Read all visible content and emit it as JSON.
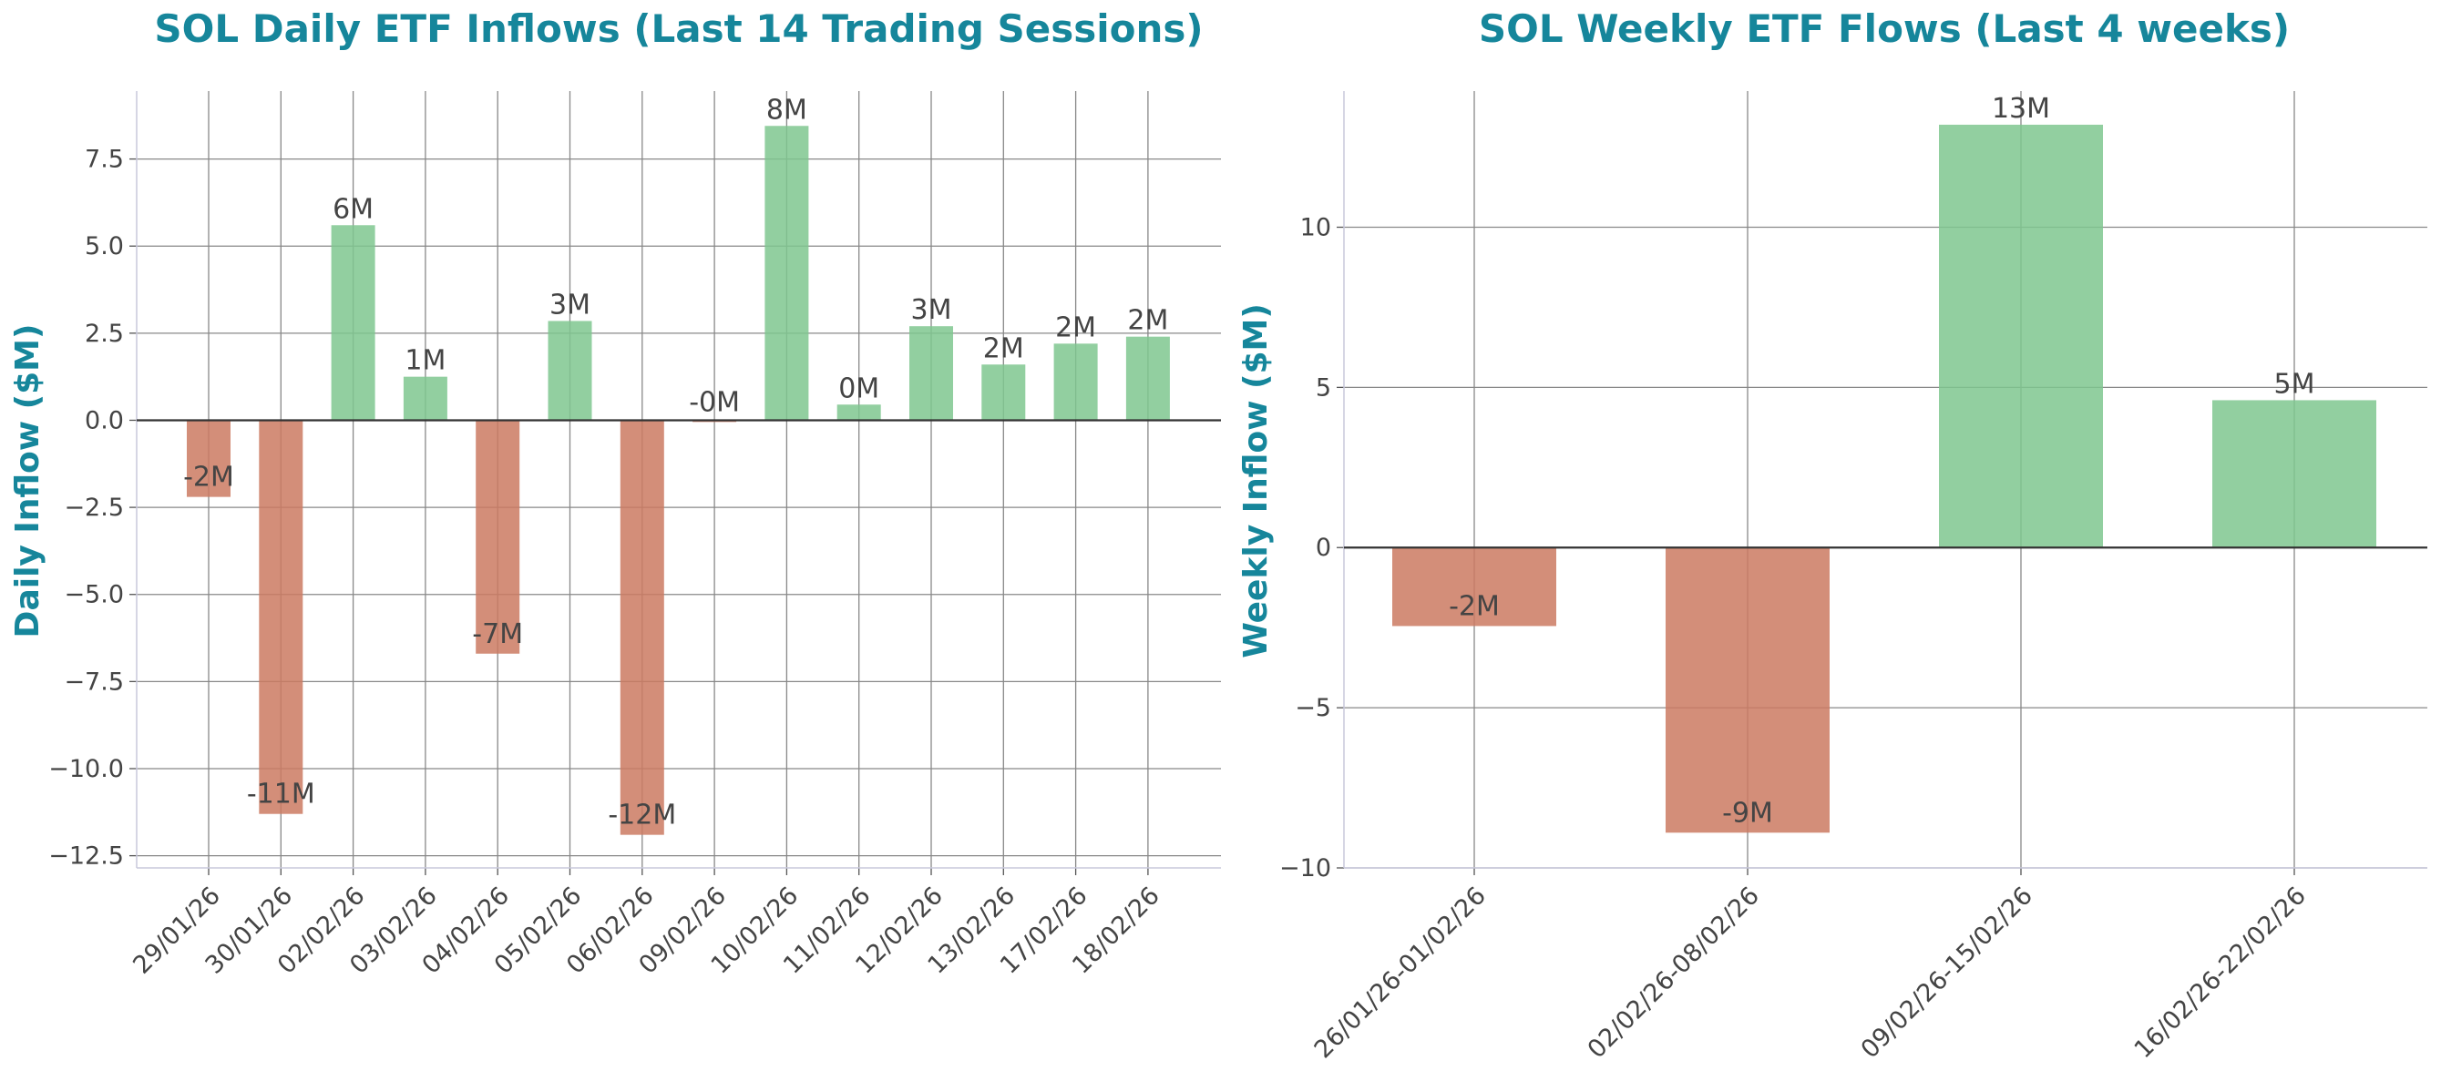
{
  "colors": {
    "positive": "#7fc78f",
    "negative": "#cb7a62",
    "title": "#16869b",
    "text": "#444444",
    "grid": "#888888"
  },
  "chart_data": [
    {
      "type": "bar",
      "title": "SOL Daily ETF Inflows (Last 14 Trading Sessions)",
      "xlabel": "",
      "ylabel": "Daily Inflow ($M)",
      "categories": [
        "29/01/26",
        "30/01/26",
        "02/02/26",
        "03/02/26",
        "04/02/26",
        "05/02/26",
        "06/02/26",
        "09/02/26",
        "10/02/26",
        "11/02/26",
        "12/02/26",
        "13/02/26",
        "17/02/26",
        "18/02/26"
      ],
      "values": [
        -2.2,
        -11.3,
        5.6,
        1.25,
        -6.7,
        2.85,
        -11.9,
        -0.05,
        8.45,
        0.45,
        2.7,
        1.6,
        2.2,
        2.4
      ],
      "data_labels": [
        "-2M",
        "-11M",
        "6M",
        "1M",
        "-7M",
        "3M",
        "-12M",
        "-0M",
        "8M",
        "0M",
        "3M",
        "2M",
        "2M",
        "2M"
      ],
      "yticks": [
        7.5,
        5.0,
        2.5,
        0.0,
        -2.5,
        -5.0,
        -7.5,
        -10.0,
        -12.5
      ],
      "ytick_labels": [
        "7.5",
        "5.0",
        "2.5",
        "0.0",
        "−2.5",
        "−5.0",
        "−7.5",
        "−10.0",
        "−12.5"
      ],
      "ylim": [
        -12.85,
        9.45
      ],
      "grid": true
    },
    {
      "type": "bar",
      "title": "SOL Weekly ETF Flows (Last 4 weeks)",
      "xlabel": "",
      "ylabel": "Weekly Inflow ($M)",
      "categories": [
        "26/01/26-01/02/26",
        "02/02/26-08/02/26",
        "09/02/26-15/02/26",
        "16/02/26-22/02/26"
      ],
      "values": [
        -2.45,
        -8.9,
        13.2,
        4.6
      ],
      "data_labels": [
        "-2M",
        "-9M",
        "13M",
        "5M"
      ],
      "yticks": [
        10,
        5,
        0,
        -5,
        -10
      ],
      "ytick_labels": [
        "10",
        "5",
        "0",
        "−5",
        "−10"
      ],
      "ylim": [
        -10,
        14.25
      ],
      "grid": true
    }
  ]
}
